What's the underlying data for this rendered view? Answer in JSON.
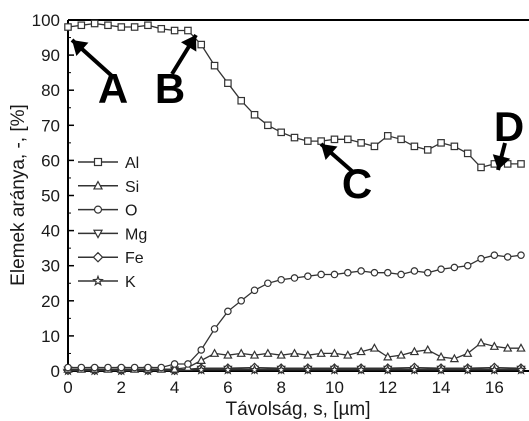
{
  "chart_data": {
    "type": "line",
    "xlabel": "Távolság, s, [µm]",
    "ylabel": "Elemek aránya, -, [%]",
    "xlim": [
      0,
      17.3
    ],
    "ylim": [
      0,
      100
    ],
    "x_ticks": [
      0,
      2,
      4,
      6,
      8,
      10,
      12,
      14,
      16
    ],
    "y_ticks": [
      0,
      10,
      20,
      30,
      40,
      50,
      60,
      70,
      80,
      90,
      100
    ],
    "grid": false,
    "legend_position": "left",
    "series": [
      {
        "name": "Al",
        "marker": "square",
        "x": [
          0,
          0.5,
          1,
          1.5,
          2,
          2.5,
          3,
          3.5,
          4,
          4.5,
          5,
          5.5,
          6,
          6.5,
          7,
          7.5,
          8,
          8.5,
          9,
          9.5,
          10,
          10.5,
          11,
          11.5,
          12,
          12.5,
          13,
          13.5,
          14,
          14.5,
          15,
          15.5,
          16,
          16.5,
          17
        ],
        "y": [
          98,
          98.5,
          99,
          98.5,
          98,
          98,
          98.5,
          97.5,
          97,
          97,
          93,
          87,
          82,
          77,
          73,
          70,
          68,
          66.5,
          65.5,
          65.5,
          66,
          66,
          65,
          64,
          67,
          66,
          64,
          63,
          65,
          64,
          62,
          58,
          59,
          59,
          59
        ]
      },
      {
        "name": "Si",
        "marker": "triangle-up",
        "x": [
          0,
          0.5,
          1,
          1.5,
          2,
          2.5,
          3,
          3.5,
          4,
          4.5,
          5,
          5.5,
          6,
          6.5,
          7,
          7.5,
          8,
          8.5,
          9,
          9.5,
          10,
          10.5,
          11,
          11.5,
          12,
          12.5,
          13,
          13.5,
          14,
          14.5,
          15,
          15.5,
          16,
          16.5,
          17
        ],
        "y": [
          0.5,
          0.5,
          0.5,
          0.5,
          0.5,
          0.5,
          0.5,
          0.5,
          0.5,
          1,
          3,
          5,
          4.5,
          5,
          4.5,
          5,
          4.5,
          5,
          4.5,
          5,
          5,
          4.5,
          5.5,
          6.5,
          4,
          4.5,
          5.5,
          6,
          4,
          3.5,
          5,
          8,
          7,
          6.5,
          6.5
        ]
      },
      {
        "name": "O",
        "marker": "circle",
        "x": [
          0,
          0.5,
          1,
          1.5,
          2,
          2.5,
          3,
          3.5,
          4,
          4.5,
          5,
          5.5,
          6,
          6.5,
          7,
          7.5,
          8,
          8.5,
          9,
          9.5,
          10,
          10.5,
          11,
          11.5,
          12,
          12.5,
          13,
          13.5,
          14,
          14.5,
          15,
          15.5,
          16,
          16.5,
          17
        ],
        "y": [
          1,
          1,
          1,
          1,
          1,
          1,
          1,
          1,
          2,
          2,
          6,
          12,
          17,
          20,
          23,
          25,
          26,
          26.5,
          27,
          27.5,
          27.5,
          28,
          28.5,
          28,
          28,
          27.5,
          28.5,
          28,
          29,
          29.5,
          30,
          32,
          33,
          32.5,
          33
        ]
      },
      {
        "name": "Mg",
        "marker": "triangle-down",
        "x": [
          0,
          1,
          2,
          3,
          4,
          5,
          6,
          7,
          8,
          9,
          10,
          11,
          12,
          13,
          14,
          15,
          16,
          17
        ],
        "y": [
          0.3,
          0.3,
          0.3,
          0.3,
          0.3,
          0.5,
          0.5,
          0.5,
          0.5,
          0.5,
          0.5,
          0.5,
          0.5,
          0.5,
          0.5,
          0.5,
          0.5,
          0.5
        ]
      },
      {
        "name": "Fe",
        "marker": "diamond",
        "x": [
          0,
          1,
          2,
          3,
          4,
          5,
          6,
          7,
          8,
          9,
          10,
          11,
          12,
          13,
          14,
          15,
          16,
          17
        ],
        "y": [
          0.2,
          0.2,
          0.2,
          0.2,
          0.2,
          0.8,
          0.8,
          1,
          0.8,
          0.8,
          0.8,
          0.8,
          0.8,
          1,
          0.8,
          0.8,
          1,
          0.8
        ]
      },
      {
        "name": "K",
        "marker": "star",
        "x": [
          0,
          1,
          2,
          3,
          4,
          5,
          6,
          7,
          8,
          9,
          10,
          11,
          12,
          13,
          14,
          15,
          16,
          17
        ],
        "y": [
          0.1,
          0.1,
          0.1,
          0.1,
          0.1,
          0.3,
          0.3,
          0.3,
          0.3,
          0.3,
          0.3,
          0.3,
          0.3,
          0.3,
          0.3,
          0.3,
          0.3,
          0.3
        ]
      }
    ],
    "annotations": [
      {
        "text": "A",
        "points_to": [
          0,
          98
        ]
      },
      {
        "text": "B",
        "points_to": [
          4.7,
          97
        ]
      },
      {
        "text": "C",
        "points_to": [
          9,
          65.5
        ]
      },
      {
        "text": "D",
        "points_to": [
          15.6,
          58
        ]
      }
    ]
  }
}
